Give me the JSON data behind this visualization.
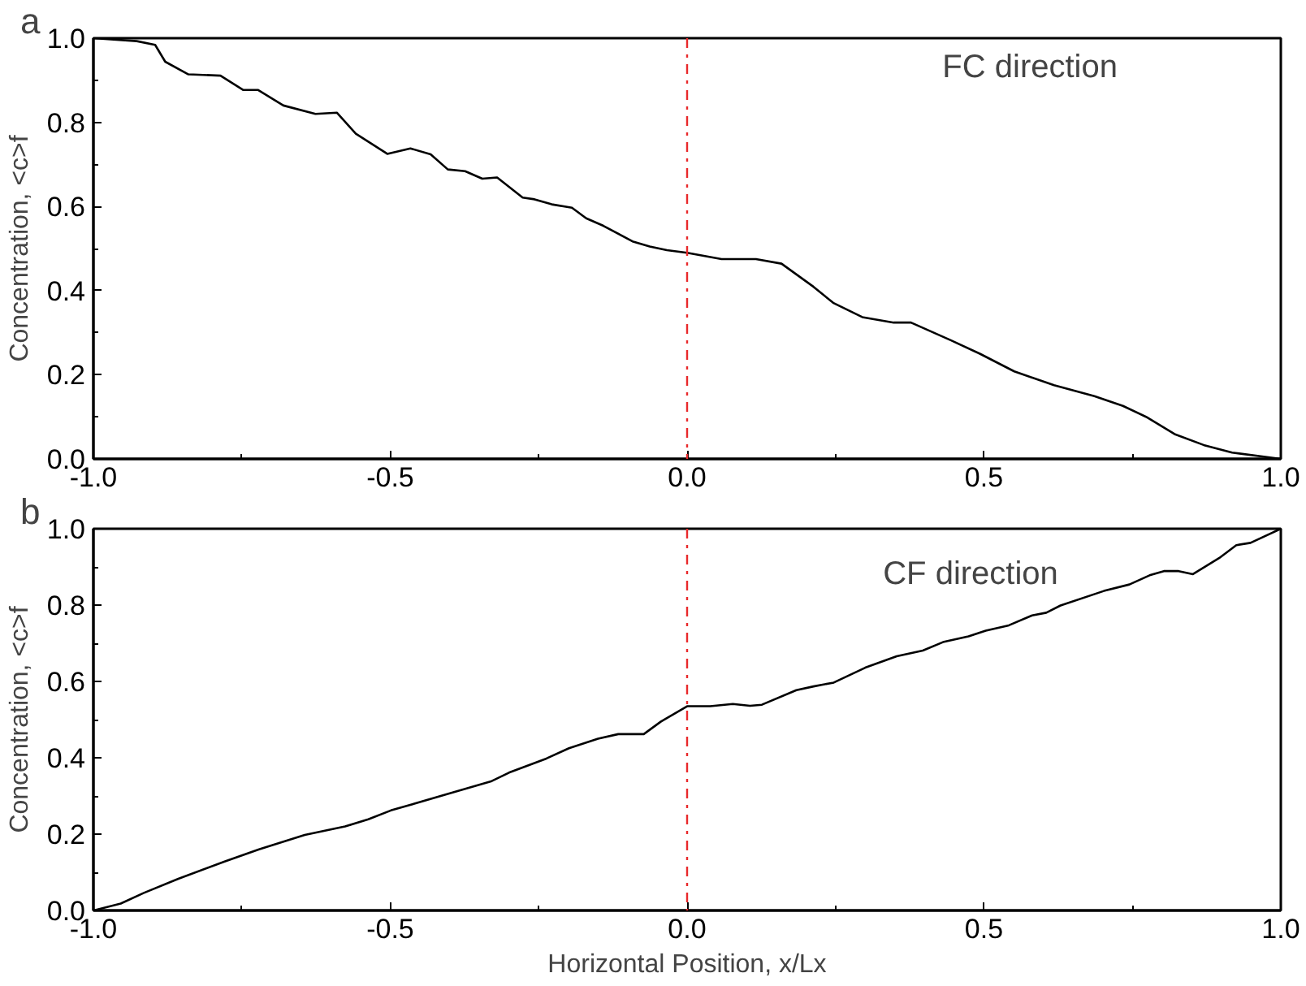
{
  "chart_data": [
    {
      "type": "line",
      "title": "a",
      "ylabel": "Concentration, <c>f",
      "annotations": [
        "FC direction"
      ],
      "x": [
        -1,
        -0.927,
        -0.896,
        -0.879,
        -0.84,
        -0.786,
        -0.748,
        -0.723,
        -0.68,
        -0.626,
        -0.59,
        -0.558,
        -0.505,
        -0.466,
        -0.432,
        -0.403,
        -0.374,
        -0.345,
        -0.32,
        -0.277,
        -0.257,
        -0.228,
        -0.194,
        -0.17,
        -0.141,
        -0.092,
        -0.063,
        -0.034,
        0,
        0.058,
        0.116,
        0.159,
        0.213,
        0.246,
        0.295,
        0.348,
        0.377,
        0.444,
        0.493,
        0.551,
        0.618,
        0.686,
        0.734,
        0.773,
        0.821,
        0.87,
        0.918,
        1
      ],
      "series": [
        {
          "color": "#000000",
          "values": [
            1.0,
            0.993,
            0.984,
            0.944,
            0.914,
            0.911,
            0.877,
            0.877,
            0.84,
            0.82,
            0.823,
            0.773,
            0.725,
            0.738,
            0.724,
            0.688,
            0.684,
            0.666,
            0.669,
            0.621,
            0.617,
            0.605,
            0.597,
            0.572,
            0.554,
            0.517,
            0.505,
            0.496,
            0.49,
            0.475,
            0.475,
            0.464,
            0.409,
            0.371,
            0.337,
            0.324,
            0.324,
            0.282,
            0.25,
            0.208,
            0.175,
            0.149,
            0.126,
            0.1,
            0.059,
            0.033,
            0.015,
            0
          ]
        }
      ],
      "xlim": [
        -1,
        1
      ],
      "ylim": [
        0,
        1
      ],
      "xticks": [
        {
          "value": -1,
          "label": "-1.0"
        },
        {
          "value": -0.75,
          "label": null
        },
        {
          "value": -0.5,
          "label": "-0.5"
        },
        {
          "value": -0.25,
          "label": null
        },
        {
          "value": 0,
          "label": "0.0"
        },
        {
          "value": 0.25,
          "label": null
        },
        {
          "value": 0.5,
          "label": "0.5"
        },
        {
          "value": 0.75,
          "label": null
        },
        {
          "value": 1,
          "label": "1.0"
        }
      ],
      "yticks": [
        {
          "value": 0,
          "label": "0.0"
        },
        {
          "value": 0.1,
          "label": null
        },
        {
          "value": 0.2,
          "label": "0.2"
        },
        {
          "value": 0.3,
          "label": null
        },
        {
          "value": 0.4,
          "label": "0.4"
        },
        {
          "value": 0.5,
          "label": null
        },
        {
          "value": 0.6,
          "label": "0.6"
        },
        {
          "value": 0.7,
          "label": null
        },
        {
          "value": 0.8,
          "label": "0.8"
        },
        {
          "value": 0.9,
          "label": null
        },
        {
          "value": 1,
          "label": "1.0"
        }
      ],
      "ref_lines": [
        {
          "axis": "x",
          "value": 0,
          "label": null,
          "color": "#e8292b",
          "line_style": "dashdot"
        }
      ],
      "grid": false,
      "marker": "none",
      "line_style": "solid"
    },
    {
      "type": "line",
      "title": "b",
      "xlabel": "Horizontal Position, x/Lx",
      "ylabel": "Concentration, <c>f",
      "annotations": [
        "CF direction"
      ],
      "x": [
        -1,
        -0.954,
        -0.915,
        -0.857,
        -0.779,
        -0.721,
        -0.644,
        -0.576,
        -0.537,
        -0.499,
        -0.47,
        -0.402,
        -0.329,
        -0.3,
        -0.237,
        -0.199,
        -0.15,
        -0.116,
        -0.073,
        -0.044,
        0,
        0.039,
        0.077,
        0.106,
        0.126,
        0.184,
        0.213,
        0.247,
        0.3,
        0.353,
        0.397,
        0.431,
        0.474,
        0.503,
        0.542,
        0.581,
        0.605,
        0.629,
        0.702,
        0.745,
        0.779,
        0.803,
        0.828,
        0.852,
        0.896,
        0.925,
        0.949,
        1
      ],
      "series": [
        {
          "color": "#000000",
          "values": [
            0,
            0.018,
            0.046,
            0.083,
            0.128,
            0.16,
            0.198,
            0.22,
            0.239,
            0.262,
            0.275,
            0.306,
            0.339,
            0.361,
            0.398,
            0.425,
            0.45,
            0.462,
            0.462,
            0.495,
            0.535,
            0.535,
            0.541,
            0.536,
            0.539,
            0.577,
            0.587,
            0.597,
            0.636,
            0.666,
            0.681,
            0.703,
            0.718,
            0.733,
            0.747,
            0.773,
            0.78,
            0.799,
            0.837,
            0.854,
            0.878,
            0.889,
            0.889,
            0.881,
            0.923,
            0.957,
            0.963,
            1.0
          ]
        }
      ],
      "xlim": [
        -1,
        1
      ],
      "ylim": [
        0,
        1
      ],
      "xticks": [
        {
          "value": -1,
          "label": "-1.0"
        },
        {
          "value": -0.75,
          "label": null
        },
        {
          "value": -0.5,
          "label": "-0.5"
        },
        {
          "value": -0.25,
          "label": null
        },
        {
          "value": 0,
          "label": "0.0"
        },
        {
          "value": 0.25,
          "label": null
        },
        {
          "value": 0.5,
          "label": "0.5"
        },
        {
          "value": 0.75,
          "label": null
        },
        {
          "value": 1,
          "label": "1.0"
        }
      ],
      "yticks": [
        {
          "value": 0,
          "label": "0.0"
        },
        {
          "value": 0.1,
          "label": null
        },
        {
          "value": 0.2,
          "label": "0.2"
        },
        {
          "value": 0.3,
          "label": null
        },
        {
          "value": 0.4,
          "label": "0.4"
        },
        {
          "value": 0.5,
          "label": null
        },
        {
          "value": 0.6,
          "label": "0.6"
        },
        {
          "value": 0.7,
          "label": null
        },
        {
          "value": 0.8,
          "label": "0.8"
        },
        {
          "value": 0.9,
          "label": null
        },
        {
          "value": 1,
          "label": "1.0"
        }
      ],
      "ref_lines": [
        {
          "axis": "x",
          "value": 0,
          "label": null,
          "color": "#e8292b",
          "line_style": "dashdot"
        }
      ],
      "grid": false,
      "marker": "none",
      "line_style": "solid"
    }
  ]
}
